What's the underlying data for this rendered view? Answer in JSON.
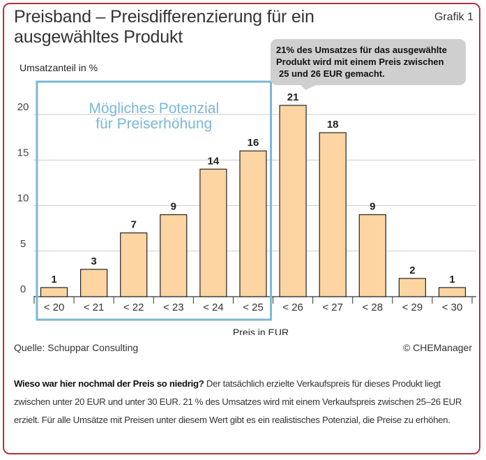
{
  "header": {
    "title_line1": "Preisband – Preisdifferenzierung für ein",
    "title_line2": "ausgewähltes Produkt",
    "badge": "Grafik 1"
  },
  "chart_data": {
    "type": "bar",
    "categories": [
      "< 20",
      "< 21",
      "< 22",
      "< 23",
      "< 24",
      "< 25",
      "< 26",
      "< 27",
      "< 28",
      "< 29",
      "< 30"
    ],
    "values": [
      1,
      3,
      7,
      9,
      14,
      16,
      21,
      18,
      9,
      2,
      1
    ],
    "ylabel": "Umsatzanteil in %",
    "xlabel": "Preis in EUR",
    "yticks": [
      0,
      5,
      10,
      15,
      20
    ],
    "ylim": [
      0,
      24
    ],
    "grid": true,
    "bar_color": "#fdd5a2",
    "bar_stroke": "#222222",
    "highlight_box": {
      "label_line1": "Mögliches Potenzial",
      "label_line2": "für Preiserhöhung",
      "from_category": "< 20",
      "to_category": "< 25",
      "color": "#7ab8d4"
    },
    "callout": {
      "line1": "21% des Umsatzes für das ausgewählte",
      "line2": "Produkt wird mit einem Preis zwischen",
      "line3": "25 und 26 EUR gemacht.",
      "target_category": "< 26"
    }
  },
  "footer": {
    "source": "Quelle: Schuppar Consulting",
    "copyright": "© CHEManager"
  },
  "caption": {
    "bold": "Wieso war hier nochmal der Preis so niedrig?",
    "text": " Der tatsächlich erzielte Verkaufspreis für dieses Produkt liegt zwischen unter 20 EUR und unter 30 EUR. 21 % des Umsatzes wird mit einem Verkaufspreis zwischen 25–26 EUR erzielt. Für alle Umsätze mit Preisen unter diesem Wert gibt es ein realistisches Potenzial, die Preise zu erhöhen."
  }
}
